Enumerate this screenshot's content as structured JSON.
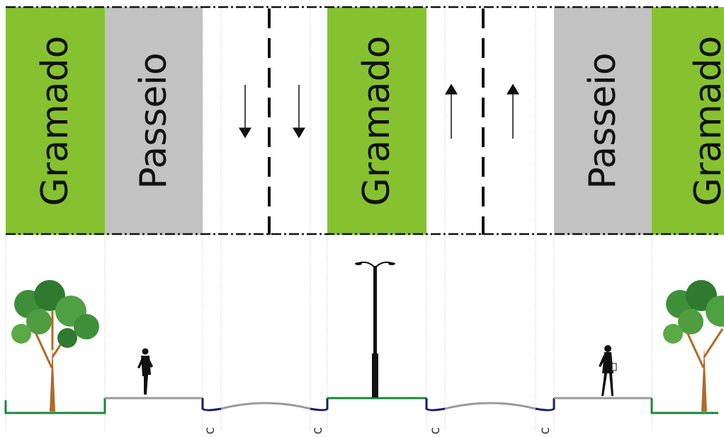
{
  "plan": {
    "strips": [
      {
        "label": "Gramado",
        "type": "grass"
      },
      {
        "label": "Passeio",
        "type": "sidewalk"
      },
      {
        "label": "",
        "type": "road"
      },
      {
        "label": "Gramado",
        "type": "grass"
      },
      {
        "label": "",
        "type": "road"
      },
      {
        "label": "Passeio",
        "type": "sidewalk"
      },
      {
        "label": "Gramado",
        "type": "grass"
      }
    ],
    "lane_arrows": [
      {
        "lane": "left-roadway-lane-1",
        "direction": "down"
      },
      {
        "lane": "left-roadway-lane-2",
        "direction": "down"
      },
      {
        "lane": "right-roadway-lane-1",
        "direction": "up"
      },
      {
        "lane": "right-roadway-lane-2",
        "direction": "up"
      }
    ]
  },
  "section": {
    "curb_marks": [
      "C",
      "C",
      "C",
      "C"
    ]
  },
  "colors": {
    "grass": "#86c22f",
    "sidewalk": "#c2c2c2",
    "grass_line": "#16893a",
    "sidewalk_line": "#9a9a9a",
    "curb": "#1b1b6e",
    "pole": "#111111",
    "tree_trunk": "#b06a2a",
    "tree_leaves": "#3f8f3a"
  }
}
